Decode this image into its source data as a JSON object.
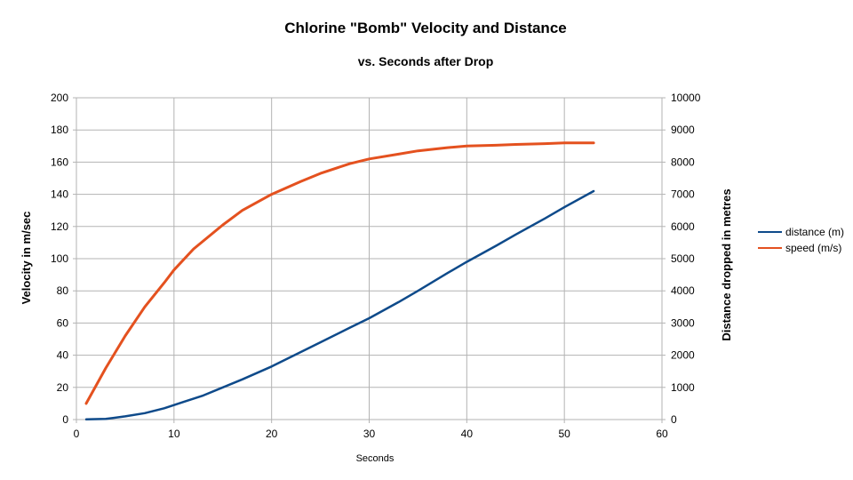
{
  "chart_data": {
    "type": "line",
    "title": "Chlorine \"Bomb\" Velocity and Distance",
    "subtitle": "vs. Seconds after Drop",
    "xlabel": "Seconds",
    "ylabel_left": "Velocity in m/sec",
    "ylabel_right": "Distance dropped in metres",
    "xlim": [
      0,
      60
    ],
    "ylim_left": [
      0,
      200
    ],
    "ylim_right": [
      0,
      10000
    ],
    "xticks": [
      "0",
      "10",
      "20",
      "30",
      "40",
      "50",
      "60"
    ],
    "yticks_left": [
      "0",
      "20",
      "40",
      "60",
      "80",
      "100",
      "120",
      "140",
      "160",
      "180",
      "200"
    ],
    "yticks_right": [
      "0",
      "1000",
      "2000",
      "3000",
      "4000",
      "5000",
      "6000",
      "7000",
      "8000",
      "9000",
      "10000"
    ],
    "grid": true,
    "legend_position": "right",
    "series": [
      {
        "name": "distance (m)",
        "axis": "right",
        "color": "#0e4a8a",
        "x": [
          1,
          3,
          5,
          7,
          9,
          11,
          13,
          15,
          17,
          20,
          23,
          25,
          28,
          30,
          33,
          35,
          38,
          40,
          43,
          45,
          48,
          50,
          53
        ],
        "y": [
          5,
          20,
          100,
          200,
          350,
          550,
          750,
          1000,
          1250,
          1650,
          2100,
          2400,
          2850,
          3150,
          3650,
          4000,
          4550,
          4900,
          5400,
          5750,
          6250,
          6600,
          7100
        ]
      },
      {
        "name": "speed (m/s)",
        "axis": "left",
        "color": "#e4511f",
        "x": [
          1,
          3,
          5,
          7,
          9,
          10,
          12,
          15,
          17,
          20,
          23,
          25,
          28,
          30,
          33,
          35,
          38,
          40,
          43,
          45,
          48,
          50,
          53
        ],
        "y": [
          10,
          32,
          52,
          70,
          85,
          93,
          106,
          121,
          130,
          140,
          148,
          153,
          159,
          162,
          165,
          167,
          169,
          170,
          170.5,
          171,
          171.5,
          172,
          172
        ]
      }
    ]
  }
}
